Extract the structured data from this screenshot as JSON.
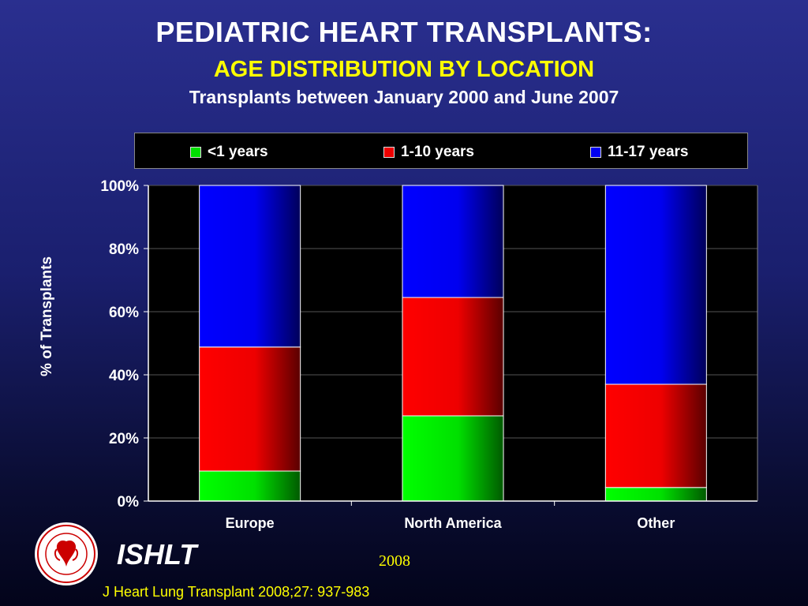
{
  "title": "PEDIATRIC HEART TRANSPLANTS:",
  "subtitle": "AGE DISTRIBUTION BY LOCATION",
  "subsubtitle": "Transplants between January 2000 and June 2007",
  "logo_text": "ISHLT",
  "year": "2008",
  "citation": "J Heart Lung Transplant 2008;27: 937-983",
  "colors": {
    "green": "#00e000",
    "red": "#ee0000",
    "blue": "#0000f0"
  },
  "chart_data": {
    "type": "bar",
    "stacked": true,
    "categories": [
      "Europe",
      "North America",
      "Other"
    ],
    "series": [
      {
        "name": "<1 years",
        "values": [
          9.5,
          27,
          4.3
        ],
        "color": "#00e000"
      },
      {
        "name": "1-10 years",
        "values": [
          39.3,
          37.5,
          32.7
        ],
        "color": "#ee0000"
      },
      {
        "name": "11-17 years",
        "values": [
          51.2,
          35.5,
          63
        ],
        "color": "#0000f0"
      }
    ],
    "ylabel": "% of Transplants",
    "ylim": [
      0,
      100
    ],
    "yticks": [
      "0%",
      "20%",
      "40%",
      "60%",
      "80%",
      "100%"
    ],
    "grid": true,
    "legend": "top"
  }
}
